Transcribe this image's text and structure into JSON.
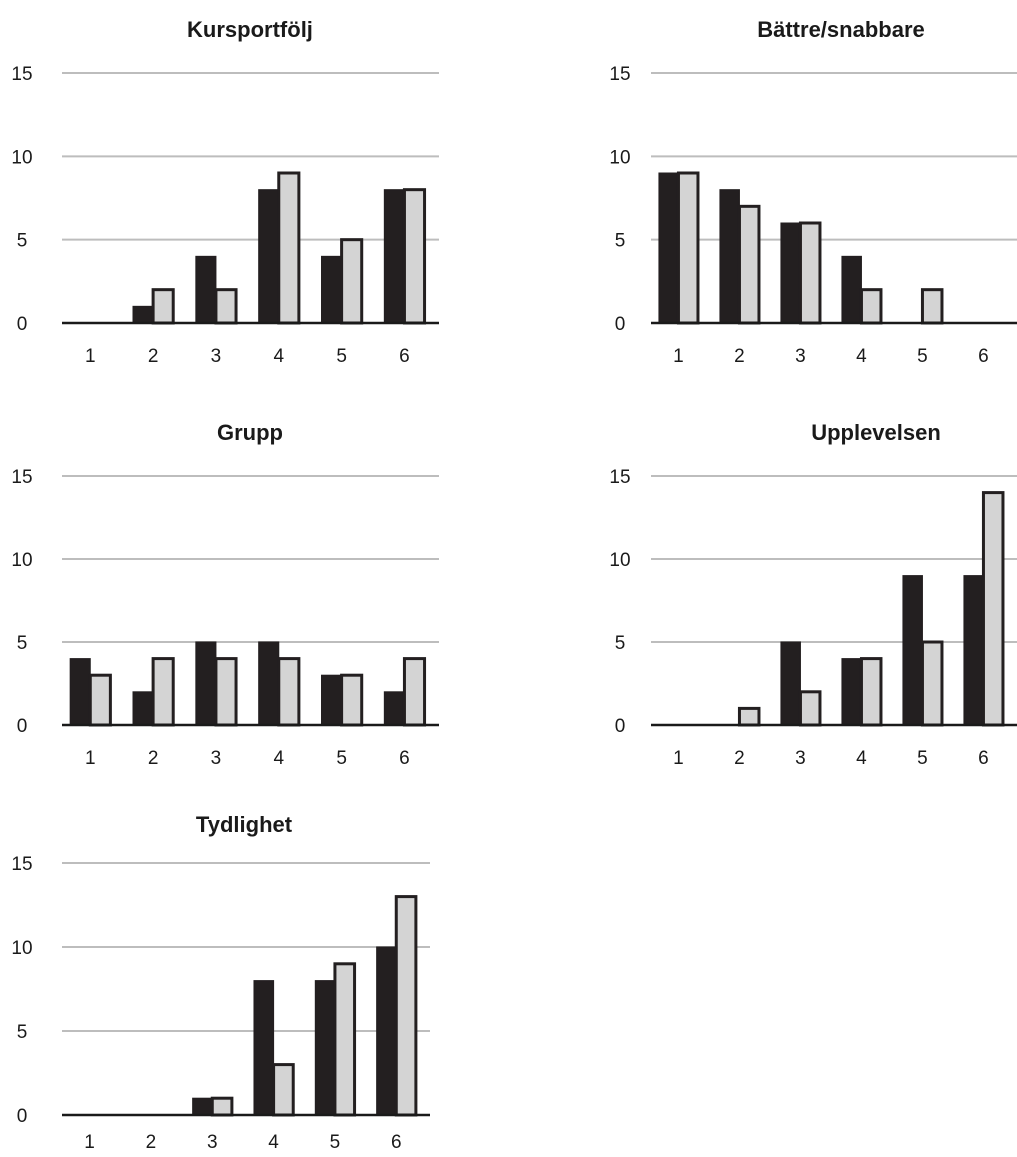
{
  "colors": {
    "series_a": "#231f20",
    "series_b": "#d4d4d4",
    "bar_stroke": "#231f20",
    "grid": "#bdbdbd",
    "text": "#1a1a1a"
  },
  "chart_data": [
    {
      "type": "bar",
      "title": "Kursportfölj",
      "categories": [
        "1",
        "2",
        "3",
        "4",
        "5",
        "6"
      ],
      "series": [
        {
          "values": [
            0,
            1,
            4,
            8,
            4,
            8
          ]
        },
        {
          "values": [
            0,
            2,
            2,
            9,
            5,
            8
          ]
        }
      ],
      "yticks": [
        "0",
        "5",
        "10",
        "15"
      ],
      "ylim": [
        0,
        15
      ],
      "grid": true,
      "legend": "none"
    },
    {
      "type": "bar",
      "title": "Bättre/snabbare",
      "categories": [
        "1",
        "2",
        "3",
        "4",
        "5",
        "6"
      ],
      "series": [
        {
          "values": [
            9,
            8,
            6,
            4,
            0,
            0
          ]
        },
        {
          "values": [
            9,
            7,
            6,
            2,
            2,
            0
          ]
        }
      ],
      "yticks": [
        "0",
        "5",
        "10",
        "15"
      ],
      "ylim": [
        0,
        15
      ],
      "grid": true,
      "legend": "none"
    },
    {
      "type": "bar",
      "title": "Grupp",
      "categories": [
        "1",
        "2",
        "3",
        "4",
        "5",
        "6"
      ],
      "series": [
        {
          "values": [
            4,
            2,
            5,
            5,
            3,
            2
          ]
        },
        {
          "values": [
            3,
            4,
            4,
            4,
            3,
            4
          ]
        }
      ],
      "yticks": [
        "0",
        "5",
        "10",
        "15"
      ],
      "ylim": [
        0,
        15
      ],
      "grid": true,
      "legend": "none"
    },
    {
      "type": "bar",
      "title": "Upplevelsen",
      "categories": [
        "1",
        "2",
        "3",
        "4",
        "5",
        "6"
      ],
      "series": [
        {
          "values": [
            0,
            0,
            5,
            4,
            9,
            9
          ]
        },
        {
          "values": [
            0,
            1,
            2,
            4,
            5,
            14
          ]
        }
      ],
      "yticks": [
        "0",
        "5",
        "10",
        "15"
      ],
      "ylim": [
        0,
        15
      ],
      "grid": true,
      "legend": "none"
    },
    {
      "type": "bar",
      "title": "Tydlighet",
      "categories": [
        "1",
        "2",
        "3",
        "4",
        "5",
        "6"
      ],
      "series": [
        {
          "values": [
            0,
            0,
            1,
            8,
            8,
            10
          ]
        },
        {
          "values": [
            0,
            0,
            1,
            3,
            9,
            13
          ]
        }
      ],
      "yticks": [
        "0",
        "5",
        "10",
        "15"
      ],
      "ylim": [
        0,
        15
      ],
      "grid": true,
      "legend": "none"
    }
  ]
}
